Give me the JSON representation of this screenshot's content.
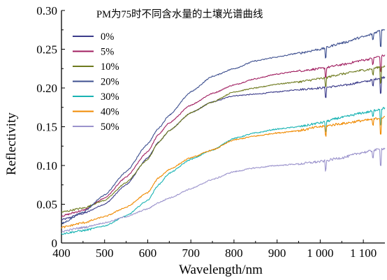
{
  "chart_data": {
    "type": "line",
    "title": "PM为75时不同含水量的土壤光谱曲线",
    "xlabel": "Wavelength/nm",
    "ylabel": "Reflectivity",
    "xlim": [
      400,
      1150
    ],
    "ylim": [
      0,
      0.3
    ],
    "xticks": [
      400,
      500,
      600,
      700,
      800,
      900,
      1000,
      1100
    ],
    "xtick_labels": [
      "400",
      "500",
      "600",
      "700",
      "800",
      "900",
      "1 000",
      "1 100"
    ],
    "yticks": [
      0,
      0.05,
      0.1,
      0.15,
      0.2,
      0.25,
      0.3
    ],
    "ytick_labels": [
      "0",
      "0.05",
      "0.10",
      "0.15",
      "0.20",
      "0.25",
      "0.30"
    ],
    "grid": false,
    "legend_position": "top-left",
    "x": [
      400,
      450,
      500,
      550,
      600,
      625,
      650,
      700,
      750,
      800,
      850,
      900,
      950,
      1000,
      1050,
      1100,
      1150
    ],
    "series": [
      {
        "name": "0%",
        "color": "#3b3b8a",
        "values": [
          0.03,
          0.038,
          0.05,
          0.075,
          0.11,
          0.13,
          0.145,
          0.168,
          0.182,
          0.19,
          0.192,
          0.195,
          0.198,
          0.2,
          0.203,
          0.208,
          0.214
        ]
      },
      {
        "name": "5%",
        "color": "#a01e60",
        "values": [
          0.035,
          0.042,
          0.058,
          0.085,
          0.118,
          0.14,
          0.155,
          0.178,
          0.193,
          0.204,
          0.212,
          0.218,
          0.222,
          0.225,
          0.23,
          0.236,
          0.242
        ]
      },
      {
        "name": "10%",
        "color": "#6e7a1e",
        "values": [
          0.04,
          0.045,
          0.055,
          0.078,
          0.108,
          0.13,
          0.145,
          0.168,
          0.182,
          0.195,
          0.2,
          0.205,
          0.208,
          0.212,
          0.218,
          0.223,
          0.228
        ]
      },
      {
        "name": "20%",
        "color": "#3d4f8f",
        "values": [
          0.025,
          0.04,
          0.062,
          0.092,
          0.128,
          0.148,
          0.165,
          0.195,
          0.215,
          0.225,
          0.235,
          0.24,
          0.245,
          0.25,
          0.258,
          0.266,
          0.276
        ]
      },
      {
        "name": "30%",
        "color": "#19b3b3",
        "values": [
          0.012,
          0.016,
          0.022,
          0.035,
          0.055,
          0.075,
          0.09,
          0.108,
          0.12,
          0.135,
          0.142,
          0.147,
          0.15,
          0.155,
          0.162,
          0.168,
          0.174
        ]
      },
      {
        "name": "40%",
        "color": "#f08a00",
        "values": [
          0.02,
          0.026,
          0.034,
          0.046,
          0.065,
          0.084,
          0.095,
          0.11,
          0.12,
          0.133,
          0.138,
          0.142,
          0.145,
          0.15,
          0.154,
          0.158,
          0.162
        ]
      },
      {
        "name": "50%",
        "color": "#9b93cc",
        "values": [
          0.015,
          0.02,
          0.026,
          0.034,
          0.044,
          0.052,
          0.058,
          0.07,
          0.082,
          0.092,
          0.097,
          0.1,
          0.102,
          0.105,
          0.11,
          0.117,
          0.122
        ]
      }
    ]
  }
}
